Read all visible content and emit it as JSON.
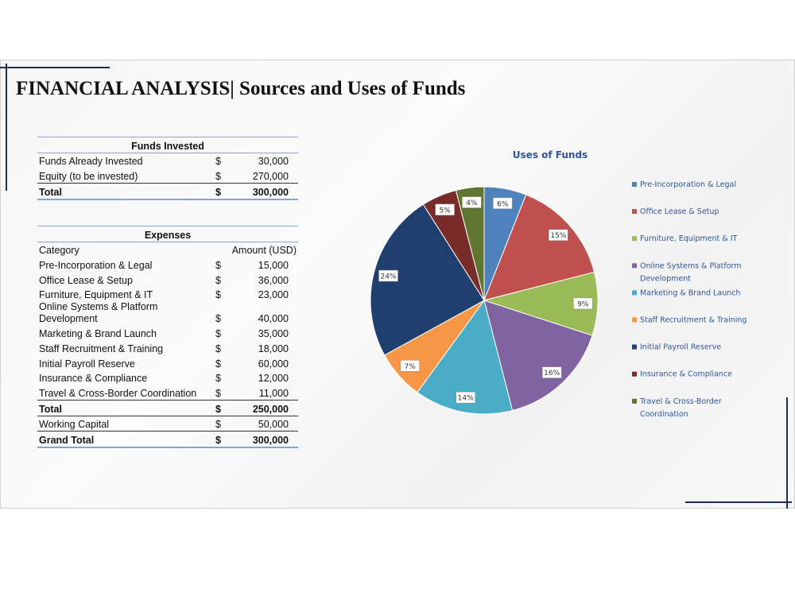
{
  "title": "FINANCIAL ANALYSIS| Sources and Uses of Funds",
  "funds_invested": {
    "title": "Funds Invested",
    "rows": [
      [
        "Funds Already Invested",
        "$",
        "30,000"
      ],
      [
        "Equity (to be invested)",
        "$",
        "270,000"
      ]
    ],
    "totals": [
      [
        "Total",
        "$",
        "300,000"
      ]
    ]
  },
  "expenses": {
    "title": "Expenses",
    "columns": [
      "Category",
      "Amount (USD)"
    ],
    "rows": [
      [
        "Pre-Incorporation & Legal",
        "$",
        "15,000"
      ],
      [
        "Office Lease & Setup",
        "$",
        "36,000"
      ],
      [
        "Furniture, Equipment & IT",
        "$",
        "23,000"
      ],
      [
        "Online Systems & Platform Development",
        "$",
        "40,000"
      ],
      [
        "Marketing & Brand Launch",
        "$",
        "35,000"
      ],
      [
        "Staff Recruitment & Training",
        "$",
        "18,000"
      ],
      [
        "Initial Payroll Reserve",
        "$",
        "60,000"
      ],
      [
        "Insurance & Compliance",
        "$",
        "12,000"
      ],
      [
        "Travel & Cross-Border Coordination",
        "$",
        "11,000"
      ]
    ],
    "totals": [
      [
        "Total",
        "$",
        "250,000"
      ],
      [
        "Working Capital",
        "$",
        "50,000"
      ],
      [
        "Grand Total",
        "$",
        "300,000"
      ]
    ]
  },
  "chart_data": {
    "type": "pie",
    "title": "Uses of Funds",
    "categories": [
      "Pre-Incorporation & Legal",
      "Office Lease & Setup",
      "Furniture, Equipment & IT",
      "Online Systems & Platform Development",
      "Marketing & Brand Launch",
      "Staff Recruitment & Training",
      "Initial Payroll Reserve",
      "Insurance & Compliance",
      "Travel & Cross-Border Coordination"
    ],
    "values": [
      6,
      15,
      9,
      16,
      14,
      7,
      24,
      5,
      4
    ],
    "value_labels": [
      "6%",
      "15%",
      "9%",
      "16%",
      "14%",
      "7%",
      "24%",
      "5%",
      "4%"
    ],
    "colors": [
      "#4f81bd",
      "#c0504d",
      "#9bbb59",
      "#8064a2",
      "#4bacc6",
      "#f79646",
      "#1f3f6e",
      "#772c2a",
      "#5f7530"
    ],
    "legend": "right"
  }
}
